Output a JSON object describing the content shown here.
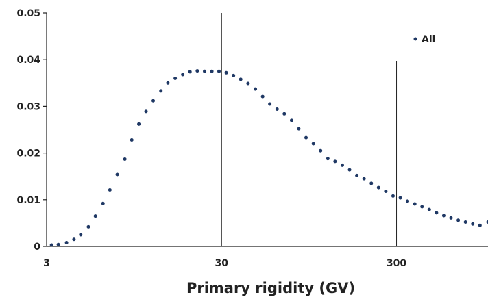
{
  "chart_data": {
    "type": "scatter",
    "title": "",
    "xlabel": "Primary rigidity (GV)",
    "ylabel": "",
    "x_scale": "log",
    "xlim": [
      3,
      1000
    ],
    "ylim": [
      0,
      0.05
    ],
    "x_ticks": [
      3,
      30,
      300
    ],
    "x_tick_labels": [
      "3",
      "30",
      "300"
    ],
    "y_ticks": [
      0,
      0.01,
      0.02,
      0.03,
      0.04,
      0.05
    ],
    "y_tick_labels": [
      "0",
      "0.01",
      "0.02",
      "0.03",
      "0.04",
      "0.05"
    ],
    "vertical_lines": [
      30,
      300
    ],
    "grid": false,
    "legend_position": "top-right",
    "series": [
      {
        "name": "All",
        "color": "#1f3864",
        "x": [
          3.2,
          3.5,
          3.9,
          4.3,
          4.7,
          5.2,
          5.7,
          6.3,
          6.9,
          7.6,
          8.4,
          9.2,
          10.1,
          11.1,
          12.2,
          13.5,
          14.8,
          16.3,
          18.0,
          19.8,
          21.8,
          24.0,
          26.4,
          29.0,
          31.9,
          35.1,
          38.6,
          42.5,
          46.8,
          51.5,
          56.6,
          62.3,
          68.5,
          75.4,
          82.9,
          91.2,
          100.4,
          110.4,
          121.5,
          133.6,
          147.0,
          161.7,
          177.9,
          195.7,
          215.3,
          236.8,
          260.5,
          286.6,
          315.2,
          346.8,
          381.5,
          419.6,
          461.6,
          507.8,
          558.6,
          614.5,
          676.0,
          743.6,
          818.0,
          899.8,
          1000
        ],
        "y": [
          0.0003,
          0.0004,
          0.0008,
          0.0015,
          0.0025,
          0.0042,
          0.0065,
          0.0092,
          0.0121,
          0.0154,
          0.0187,
          0.0228,
          0.0262,
          0.0289,
          0.0312,
          0.0333,
          0.035,
          0.036,
          0.0368,
          0.0374,
          0.0376,
          0.0375,
          0.0375,
          0.0375,
          0.0372,
          0.0366,
          0.0358,
          0.0349,
          0.0337,
          0.0321,
          0.0305,
          0.0294,
          0.0284,
          0.027,
          0.0252,
          0.0233,
          0.022,
          0.0205,
          0.0188,
          0.0182,
          0.0174,
          0.0164,
          0.0152,
          0.0145,
          0.0135,
          0.0126,
          0.0118,
          0.0108,
          0.0104,
          0.0097,
          0.0091,
          0.0085,
          0.0079,
          0.0072,
          0.0066,
          0.0061,
          0.0056,
          0.0052,
          0.0048,
          0.0045,
          0.0052
        ]
      }
    ]
  }
}
